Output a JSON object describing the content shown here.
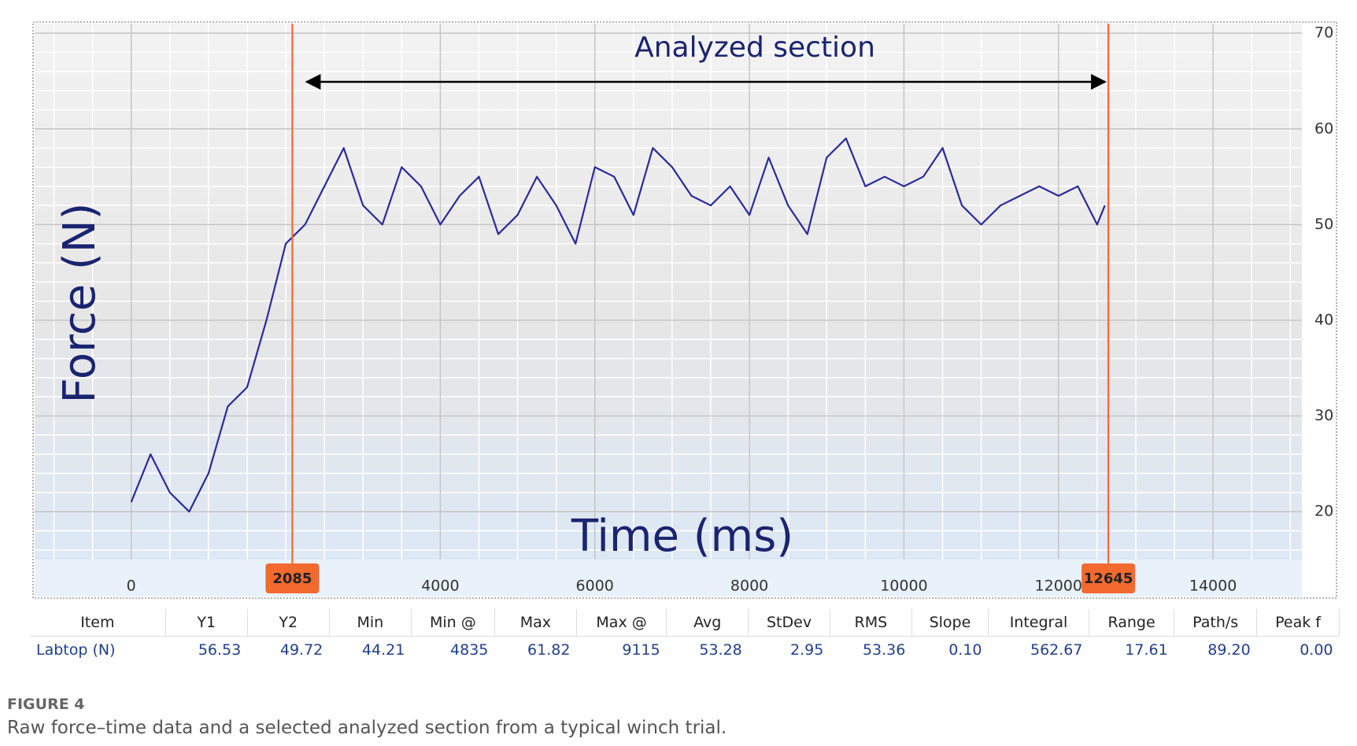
{
  "chart_data": {
    "type": "line",
    "title": "Analyzed section",
    "x_label": "Time (ms)",
    "y_label": "Force (N)",
    "x": [
      0,
      250,
      500,
      750,
      1000,
      1250,
      1500,
      1750,
      2000,
      2250,
      2500,
      2750,
      3000,
      3250,
      3500,
      3750,
      4000,
      4250,
      4500,
      4750,
      5000,
      5250,
      5500,
      5750,
      6000,
      6250,
      6500,
      6750,
      7000,
      7250,
      7500,
      7750,
      8000,
      8250,
      8500,
      8750,
      9000,
      9250,
      9500,
      9750,
      10000,
      10250,
      10500,
      10750,
      11000,
      11250,
      11500,
      11750,
      12000,
      12250,
      12500,
      12600
    ],
    "series": [
      {
        "name": "Labtop (N)",
        "color": "#2a2aa0",
        "values": [
          21,
          26,
          22,
          20,
          24,
          31,
          33,
          40,
          48,
          50,
          54,
          58,
          52,
          50,
          56,
          54,
          50,
          53,
          55,
          49,
          51,
          55,
          52,
          48,
          56,
          55,
          51,
          58,
          56,
          53,
          52,
          54,
          51,
          57,
          52,
          49,
          57,
          59,
          54,
          55,
          54,
          55,
          58,
          52,
          50,
          52,
          53,
          54,
          53,
          54,
          50,
          52
        ]
      }
    ],
    "xlim": [
      -1250,
      15150
    ],
    "ylim": [
      15,
      71
    ],
    "xticks": [
      0,
      4000,
      6000,
      8000,
      10000,
      12000,
      14000
    ],
    "yticks": [
      20,
      30,
      40,
      50,
      60,
      70
    ],
    "cursors": [
      2085,
      12645
    ],
    "cursor_color": "#f26a2e",
    "grid": true
  },
  "table": {
    "header": [
      "Item",
      "Y1",
      "Y2",
      "Min",
      "Min @",
      "Max",
      "Max @",
      "Avg",
      "StDev",
      "RMS",
      "Slope",
      "Integral",
      "Range",
      "Path/s",
      "Peak f"
    ],
    "rows": [
      [
        "Labtop (N)",
        "56.53",
        "49.72",
        "44.21",
        "4835",
        "61.82",
        "9115",
        "53.28",
        "2.95",
        "53.36",
        "0.10",
        "562.67",
        "17.61",
        "89.20",
        "0.00"
      ]
    ]
  },
  "caption": {
    "label": "FIGURE 4",
    "text": "Raw force–time data and a selected analyzed section from a typical winch trial."
  }
}
